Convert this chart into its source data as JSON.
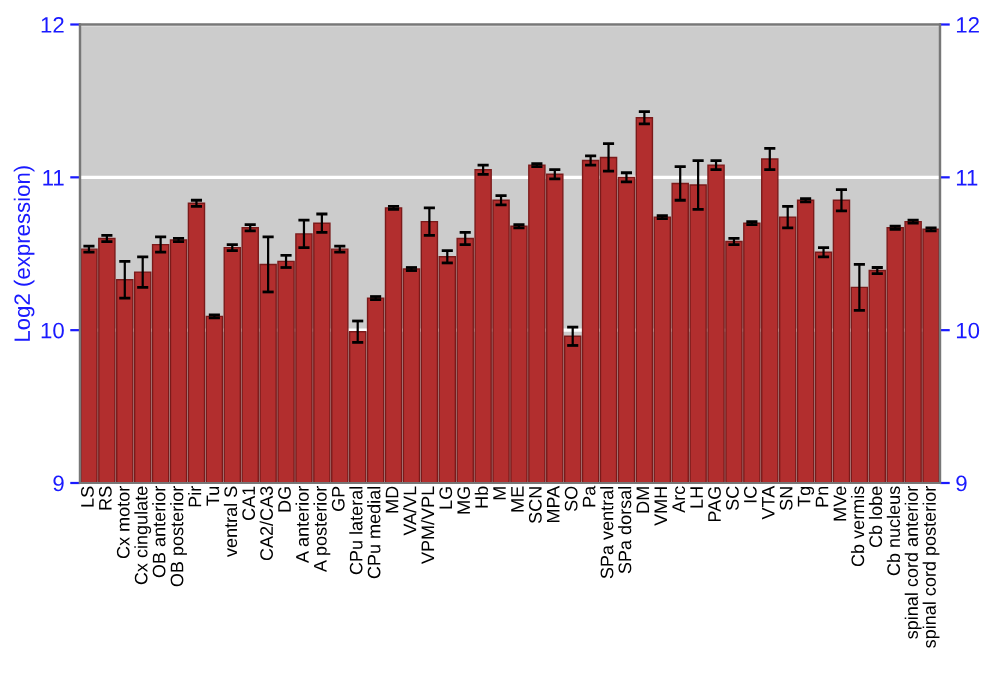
{
  "chart_data": {
    "type": "bar",
    "ylabel": "Log2 (expression)",
    "categories": [
      "LS",
      "RS",
      "Cx motor",
      "Cx cingulate",
      "OB anterior",
      "OB posterior",
      "Pir",
      "Tu",
      "ventral S",
      "CA1",
      "CA2/CA3",
      "DG",
      "A anterior",
      "A posterior",
      "GP",
      "CPu lateral",
      "CPu medial",
      "MD",
      "VA/VL",
      "VPM/VPL",
      "LG",
      "MG",
      "Hb",
      "M",
      "ME",
      "SCN",
      "MPA",
      "SO",
      "Pa",
      "SPa ventral",
      "SPa dorsal",
      "DM",
      "VMH",
      "Arc",
      "LH",
      "PAG",
      "SC",
      "IC",
      "VTA",
      "SN",
      "Tg",
      "Pn",
      "MVe",
      "Cb vermis",
      "Cb lobe",
      "Cb nucleus",
      "spinal cord anterior",
      "spinal cord posterior"
    ],
    "values": [
      10.53,
      10.6,
      10.33,
      10.38,
      10.56,
      10.59,
      10.83,
      10.09,
      10.54,
      10.67,
      10.43,
      10.45,
      10.63,
      10.7,
      10.53,
      9.99,
      10.21,
      10.8,
      10.4,
      10.71,
      10.48,
      10.6,
      11.05,
      10.85,
      10.68,
      11.08,
      11.02,
      9.96,
      11.11,
      11.13,
      11.0,
      11.39,
      10.74,
      10.96,
      10.95,
      11.08,
      10.58,
      10.7,
      11.12,
      10.74,
      10.85,
      10.51,
      10.85,
      10.28,
      10.39,
      10.67,
      10.71,
      10.66
    ],
    "errors": [
      0.02,
      0.02,
      0.12,
      0.1,
      0.05,
      0.01,
      0.02,
      0.01,
      0.02,
      0.02,
      0.18,
      0.04,
      0.09,
      0.06,
      0.02,
      0.07,
      0.01,
      0.01,
      0.01,
      0.09,
      0.04,
      0.04,
      0.03,
      0.03,
      0.01,
      0.01,
      0.03,
      0.06,
      0.03,
      0.09,
      0.03,
      0.04,
      0.01,
      0.11,
      0.16,
      0.03,
      0.02,
      0.01,
      0.07,
      0.07,
      0.01,
      0.03,
      0.07,
      0.15,
      0.02,
      0.01,
      0.01,
      0.01
    ],
    "color": "#b22e2e",
    "ylim": [
      9,
      12
    ],
    "yticks": [
      9,
      10,
      11,
      12
    ],
    "y2lim": [
      9,
      12
    ],
    "y2ticks": [
      9,
      10,
      11,
      12
    ],
    "grid": "y"
  }
}
